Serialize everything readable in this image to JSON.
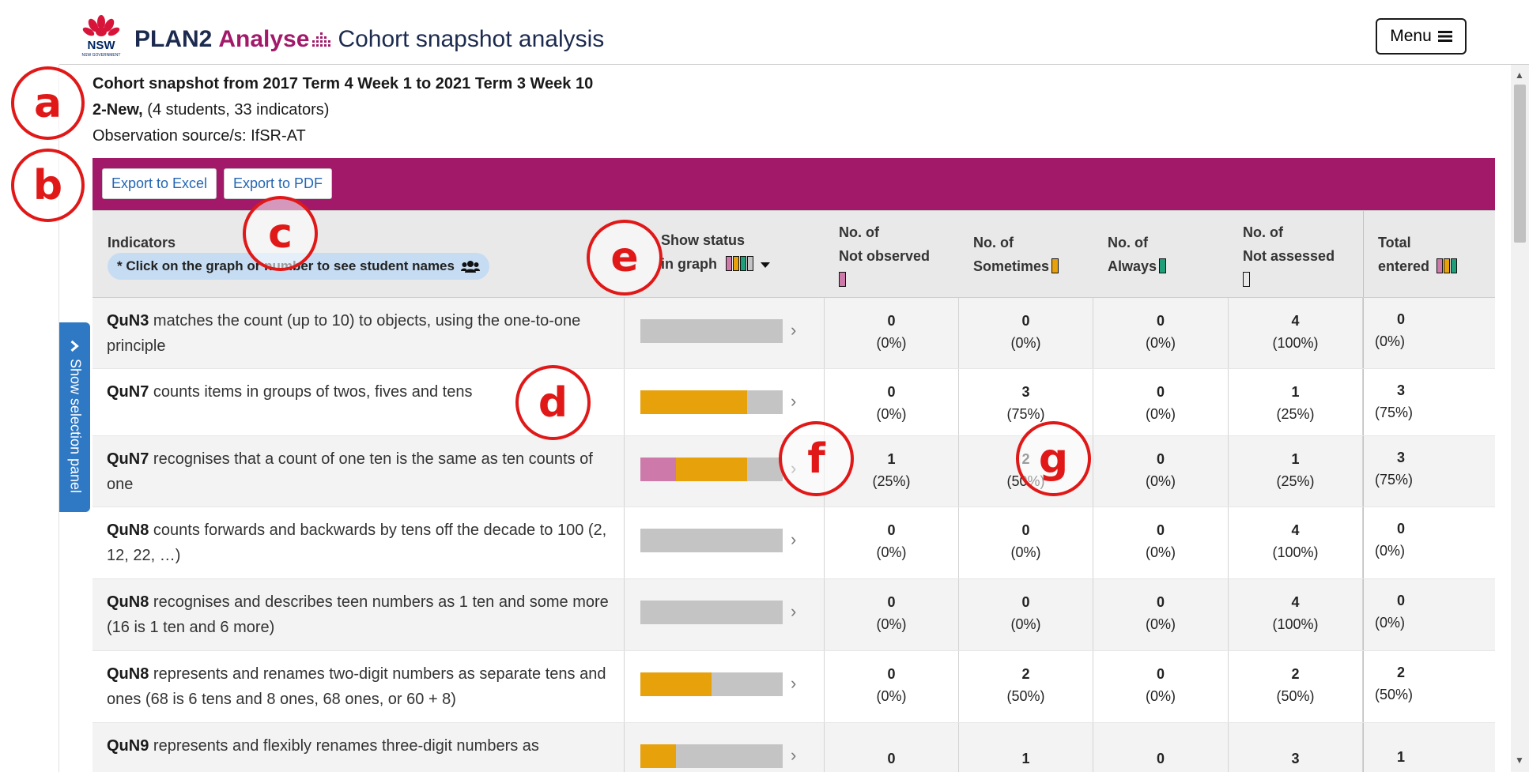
{
  "header": {
    "brand_plan2": "PLAN2",
    "brand_analyse": "Analyse",
    "brand_page": "Cohort snapshot analysis",
    "menu_label": "Menu",
    "logo_text": "NSW GOVERNMENT"
  },
  "selection_panel_label": "Show selection panel",
  "info": {
    "title": "Cohort snapshot from 2017 Term 4 Week 1 to 2021 Term 3 Week 10",
    "group_name": "2-New,",
    "group_detail": "(4 students, 33 indicators)",
    "source": "Observation source/s: IfSR-AT"
  },
  "toolbar": {
    "export_excel": "Export to Excel",
    "export_pdf": "Export to PDF"
  },
  "table": {
    "headers": {
      "indicators": "Indicators",
      "hint": "* Click on the graph or number to see student names",
      "show_status_1": "Show status",
      "show_status_2": "in graph",
      "not_observed_1": "No. of",
      "not_observed_2": "Not observed",
      "sometimes_1": "No. of",
      "sometimes_2": "Sometimes",
      "always_1": "No. of",
      "always_2": "Always",
      "not_assessed_1": "No. of",
      "not_assessed_2": "Not assessed",
      "total_1": "Total",
      "total_2": "entered"
    },
    "rows": [
      {
        "code": "QuN3",
        "text": "matches the count (up to 10) to objects, using the one-to-one principle",
        "not_observed": "0",
        "not_observed_pct": "(0%)",
        "sometimes": "0",
        "sometimes_pct": "(0%)",
        "always": "0",
        "always_pct": "(0%)",
        "not_assessed": "4",
        "not_assessed_pct": "(100%)",
        "total": "0",
        "total_pct": "(0%)"
      },
      {
        "code": "QuN7",
        "text": "counts items in groups of twos, fives and tens",
        "not_observed": "0",
        "not_observed_pct": "(0%)",
        "sometimes": "3",
        "sometimes_pct": "(75%)",
        "always": "0",
        "always_pct": "(0%)",
        "not_assessed": "1",
        "not_assessed_pct": "(25%)",
        "total": "3",
        "total_pct": "(75%)"
      },
      {
        "code": "QuN7",
        "text": "recognises that a count of one ten is the same as ten counts of one",
        "not_observed": "1",
        "not_observed_pct": "(25%)",
        "sometimes": "2",
        "sometimes_pct": "(50%)",
        "always": "0",
        "always_pct": "(0%)",
        "not_assessed": "1",
        "not_assessed_pct": "(25%)",
        "total": "3",
        "total_pct": "(75%)"
      },
      {
        "code": "QuN8",
        "text": "counts forwards and backwards by tens off the decade to 100 (2, 12, 22, …)",
        "not_observed": "0",
        "not_observed_pct": "(0%)",
        "sometimes": "0",
        "sometimes_pct": "(0%)",
        "always": "0",
        "always_pct": "(0%)",
        "not_assessed": "4",
        "not_assessed_pct": "(100%)",
        "total": "0",
        "total_pct": "(0%)"
      },
      {
        "code": "QuN8",
        "text": "recognises and describes teen numbers as 1 ten and some more (16 is 1 ten and 6 more)",
        "not_observed": "0",
        "not_observed_pct": "(0%)",
        "sometimes": "0",
        "sometimes_pct": "(0%)",
        "always": "0",
        "always_pct": "(0%)",
        "not_assessed": "4",
        "not_assessed_pct": "(100%)",
        "total": "0",
        "total_pct": "(0%)"
      },
      {
        "code": "QuN8",
        "text": "represents and renames two-digit numbers as separate tens and ones (68 is 6 tens and 8 ones, 68 ones, or 60 + 8)",
        "not_observed": "0",
        "not_observed_pct": "(0%)",
        "sometimes": "2",
        "sometimes_pct": "(50%)",
        "always": "0",
        "always_pct": "(0%)",
        "not_assessed": "2",
        "not_assessed_pct": "(50%)",
        "total": "2",
        "total_pct": "(50%)"
      },
      {
        "code": "QuN9",
        "text": "represents and flexibly renames three-digit numbers as",
        "not_observed": "0",
        "not_observed_pct": "",
        "sometimes": "1",
        "sometimes_pct": "",
        "always": "0",
        "always_pct": "",
        "not_assessed": "3",
        "not_assessed_pct": "",
        "total": "1",
        "total_pct": ""
      }
    ]
  },
  "status_colors": {
    "not_observed": "#cd7aab",
    "sometimes": "#e6a10b",
    "always": "#1f9e7a",
    "not_assessed": "#c4c4c4"
  },
  "annotations": [
    "a",
    "b",
    "c",
    "d",
    "e",
    "f",
    "g"
  ]
}
